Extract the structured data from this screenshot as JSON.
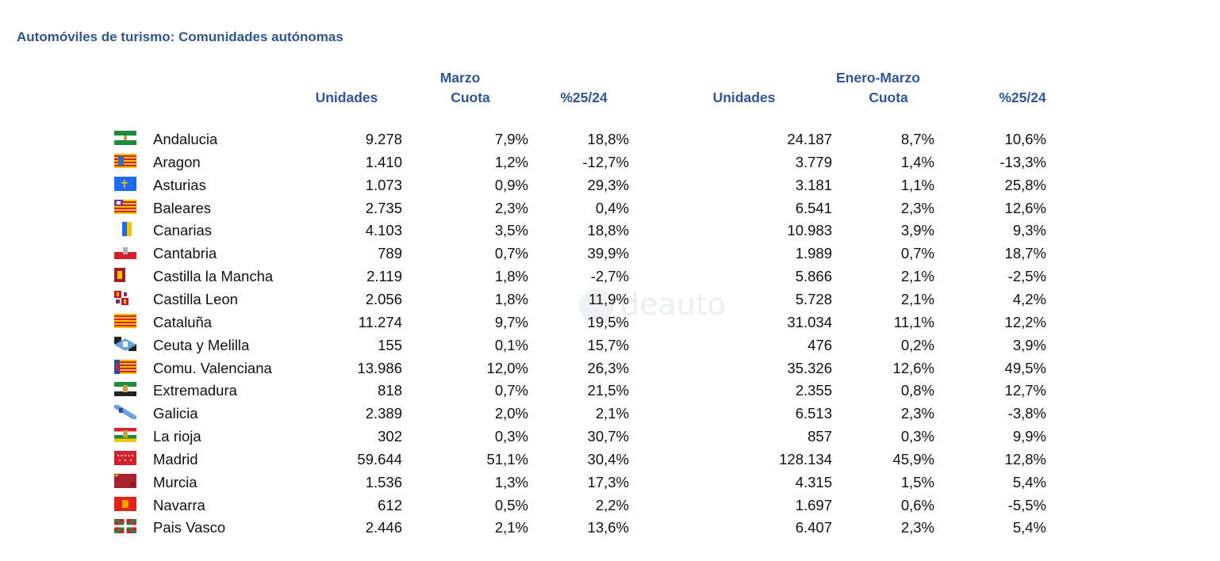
{
  "title": "Automóviles de turismo: Comunidades autónomas",
  "groups": {
    "marzo": "Marzo",
    "enero_marzo": "Enero-Marzo"
  },
  "columns": {
    "unidades_1": "Unidades",
    "cuota_1": "Cuota",
    "var_1": "%25/24",
    "unidades_2": "Unidades",
    "cuota_2": "Cuota",
    "var_2": "%25/24"
  },
  "rows": [
    {
      "flag": "andalucia-flag",
      "name": "Andalucia",
      "m_unidades": "9.278",
      "m_cuota": "7,9%",
      "m_var": "18,8%",
      "em_unidades": "24.187",
      "em_cuota": "8,7%",
      "em_var": "10,6%"
    },
    {
      "flag": "aragon-flag",
      "name": "Aragon",
      "m_unidades": "1.410",
      "m_cuota": "1,2%",
      "m_var": "-12,7%",
      "em_unidades": "3.779",
      "em_cuota": "1,4%",
      "em_var": "-13,3%"
    },
    {
      "flag": "asturias-flag",
      "name": "Asturias",
      "m_unidades": "1.073",
      "m_cuota": "0,9%",
      "m_var": "29,3%",
      "em_unidades": "3.181",
      "em_cuota": "1,1%",
      "em_var": "25,8%"
    },
    {
      "flag": "baleares-flag",
      "name": "Baleares",
      "m_unidades": "2.735",
      "m_cuota": "2,3%",
      "m_var": "0,4%",
      "em_unidades": "6.541",
      "em_cuota": "2,3%",
      "em_var": "12,6%"
    },
    {
      "flag": "canarias-flag",
      "name": "Canarias",
      "m_unidades": "4.103",
      "m_cuota": "3,5%",
      "m_var": "18,8%",
      "em_unidades": "10.983",
      "em_cuota": "3,9%",
      "em_var": "9,3%"
    },
    {
      "flag": "cantabria-flag",
      "name": "Cantabria",
      "m_unidades": "789",
      "m_cuota": "0,7%",
      "m_var": "39,9%",
      "em_unidades": "1.989",
      "em_cuota": "0,7%",
      "em_var": "18,7%"
    },
    {
      "flag": "castilla-la-mancha-flag",
      "name": "Castilla la Mancha",
      "m_unidades": "2.119",
      "m_cuota": "1,8%",
      "m_var": "-2,7%",
      "em_unidades": "5.866",
      "em_cuota": "2,1%",
      "em_var": "-2,5%"
    },
    {
      "flag": "castilla-leon-flag",
      "name": "Castilla Leon",
      "m_unidades": "2.056",
      "m_cuota": "1,8%",
      "m_var": "11,9%",
      "em_unidades": "5.728",
      "em_cuota": "2,1%",
      "em_var": "4,2%"
    },
    {
      "flag": "cataluna-flag",
      "name": "Cataluña",
      "m_unidades": "11.274",
      "m_cuota": "9,7%",
      "m_var": "19,5%",
      "em_unidades": "31.034",
      "em_cuota": "11,1%",
      "em_var": "12,2%"
    },
    {
      "flag": "ceuta-melilla-flag",
      "name": "Ceuta y Melilla",
      "m_unidades": "155",
      "m_cuota": "0,1%",
      "m_var": "15,7%",
      "em_unidades": "476",
      "em_cuota": "0,2%",
      "em_var": "3,9%"
    },
    {
      "flag": "valencia-flag",
      "name": "Comu. Valenciana",
      "m_unidades": "13.986",
      "m_cuota": "12,0%",
      "m_var": "26,3%",
      "em_unidades": "35.326",
      "em_cuota": "12,6%",
      "em_var": "49,5%"
    },
    {
      "flag": "extremadura-flag",
      "name": "Extremadura",
      "m_unidades": "818",
      "m_cuota": "0,7%",
      "m_var": "21,5%",
      "em_unidades": "2.355",
      "em_cuota": "0,8%",
      "em_var": "12,7%"
    },
    {
      "flag": "galicia-flag",
      "name": "Galicia",
      "m_unidades": "2.389",
      "m_cuota": "2,0%",
      "m_var": "2,1%",
      "em_unidades": "6.513",
      "em_cuota": "2,3%",
      "em_var": "-3,8%"
    },
    {
      "flag": "la-rioja-flag",
      "name": "La rioja",
      "m_unidades": "302",
      "m_cuota": "0,3%",
      "m_var": "30,7%",
      "em_unidades": "857",
      "em_cuota": "0,3%",
      "em_var": "9,9%"
    },
    {
      "flag": "madrid-flag",
      "name": "Madrid",
      "m_unidades": "59.644",
      "m_cuota": "51,1%",
      "m_var": "30,4%",
      "em_unidades": "128.134",
      "em_cuota": "45,9%",
      "em_var": "12,8%"
    },
    {
      "flag": "murcia-flag",
      "name": "Murcia",
      "m_unidades": "1.536",
      "m_cuota": "1,3%",
      "m_var": "17,3%",
      "em_unidades": "4.315",
      "em_cuota": "1,5%",
      "em_var": "5,4%"
    },
    {
      "flag": "navarra-flag",
      "name": "Navarra",
      "m_unidades": "612",
      "m_cuota": "0,5%",
      "m_var": "2,2%",
      "em_unidades": "1.697",
      "em_cuota": "0,6%",
      "em_var": "-5,5%"
    },
    {
      "flag": "pais-vasco-flag",
      "name": "Pais Vasco",
      "m_unidades": "2.446",
      "m_cuota": "2,1%",
      "m_var": "13,6%",
      "em_unidades": "6.407",
      "em_cuota": "2,3%",
      "em_var": "5,4%"
    }
  ],
  "watermark": "deauto",
  "colors": {
    "header": "#2f5597",
    "text": "#111111"
  }
}
